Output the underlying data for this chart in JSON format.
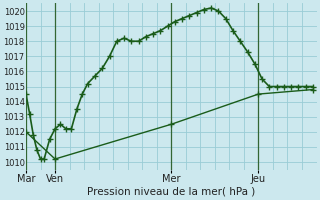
{
  "xlabel": "Pression niveau de la mer( hPa )",
  "ylim": [
    1009.5,
    1020.5
  ],
  "yticks": [
    1010,
    1011,
    1012,
    1013,
    1014,
    1015,
    1016,
    1017,
    1018,
    1019,
    1020
  ],
  "background_color": "#cce8ee",
  "grid_color": "#99ccd6",
  "line_color": "#1a5c1a",
  "fig_bg": "#cce8ee",
  "x_day_labels": [
    [
      "Mar",
      0
    ],
    [
      "Ven",
      16
    ],
    [
      "Mer",
      80
    ],
    [
      "Jeu",
      128
    ]
  ],
  "x_vlines": [
    0,
    16,
    80,
    128
  ],
  "xlim": [
    0,
    160
  ],
  "series1_x": [
    0,
    2,
    4,
    6,
    8,
    10,
    13,
    16,
    19,
    22,
    25,
    28,
    31,
    34,
    38,
    42,
    46,
    50,
    54,
    58,
    62,
    66,
    70,
    74,
    78,
    82,
    86,
    90,
    94,
    98,
    102,
    106,
    110,
    114,
    118,
    122,
    126,
    130,
    134,
    138,
    142,
    146,
    150,
    154,
    158
  ],
  "series1_y": [
    1014.5,
    1013.2,
    1011.8,
    1010.8,
    1010.2,
    1010.2,
    1011.5,
    1012.2,
    1012.5,
    1012.2,
    1012.2,
    1013.5,
    1014.5,
    1015.2,
    1015.7,
    1016.2,
    1017.0,
    1018.0,
    1018.2,
    1018.0,
    1018.0,
    1018.3,
    1018.5,
    1018.7,
    1019.0,
    1019.3,
    1019.5,
    1019.7,
    1019.9,
    1020.1,
    1020.2,
    1020.0,
    1019.5,
    1018.7,
    1018.0,
    1017.3,
    1016.5,
    1015.5,
    1015.0,
    1015.0,
    1015.0,
    1015.0,
    1015.0,
    1015.0,
    1015.0
  ],
  "series2_x": [
    0,
    16,
    80,
    128,
    158
  ],
  "series2_y": [
    1012.0,
    1010.2,
    1012.5,
    1014.5,
    1014.8
  ],
  "vline_color": "#336633"
}
